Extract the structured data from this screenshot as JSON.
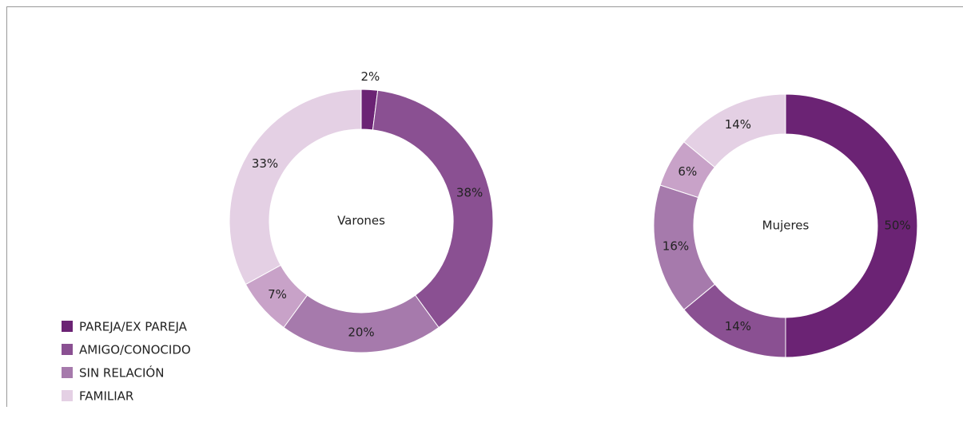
{
  "chart_data": [
    {
      "type": "pie",
      "title": "Varones",
      "categories": [
        "PAREJA/EX PAREJA",
        "AMIGO/CONOCIDO",
        "SIN RELACIÓN",
        null,
        "FAMILIAR"
      ],
      "values": [
        2,
        38,
        20,
        7,
        33
      ],
      "colors": [
        "#6b2374",
        "#8a5092",
        "#a67aac",
        "#c8a2c8",
        "#e4d0e4"
      ]
    },
    {
      "type": "pie",
      "title": "Mujeres",
      "categories": [
        "PAREJA/EX PAREJA",
        "AMIGO/CONOCIDO",
        "SIN RELACIÓN",
        null,
        "FAMILIAR"
      ],
      "values": [
        50,
        14,
        16,
        6,
        14
      ],
      "colors": [
        "#6b2374",
        "#8a5092",
        "#a67aac",
        "#c8a2c8",
        "#e4d0e4"
      ]
    }
  ]
}
